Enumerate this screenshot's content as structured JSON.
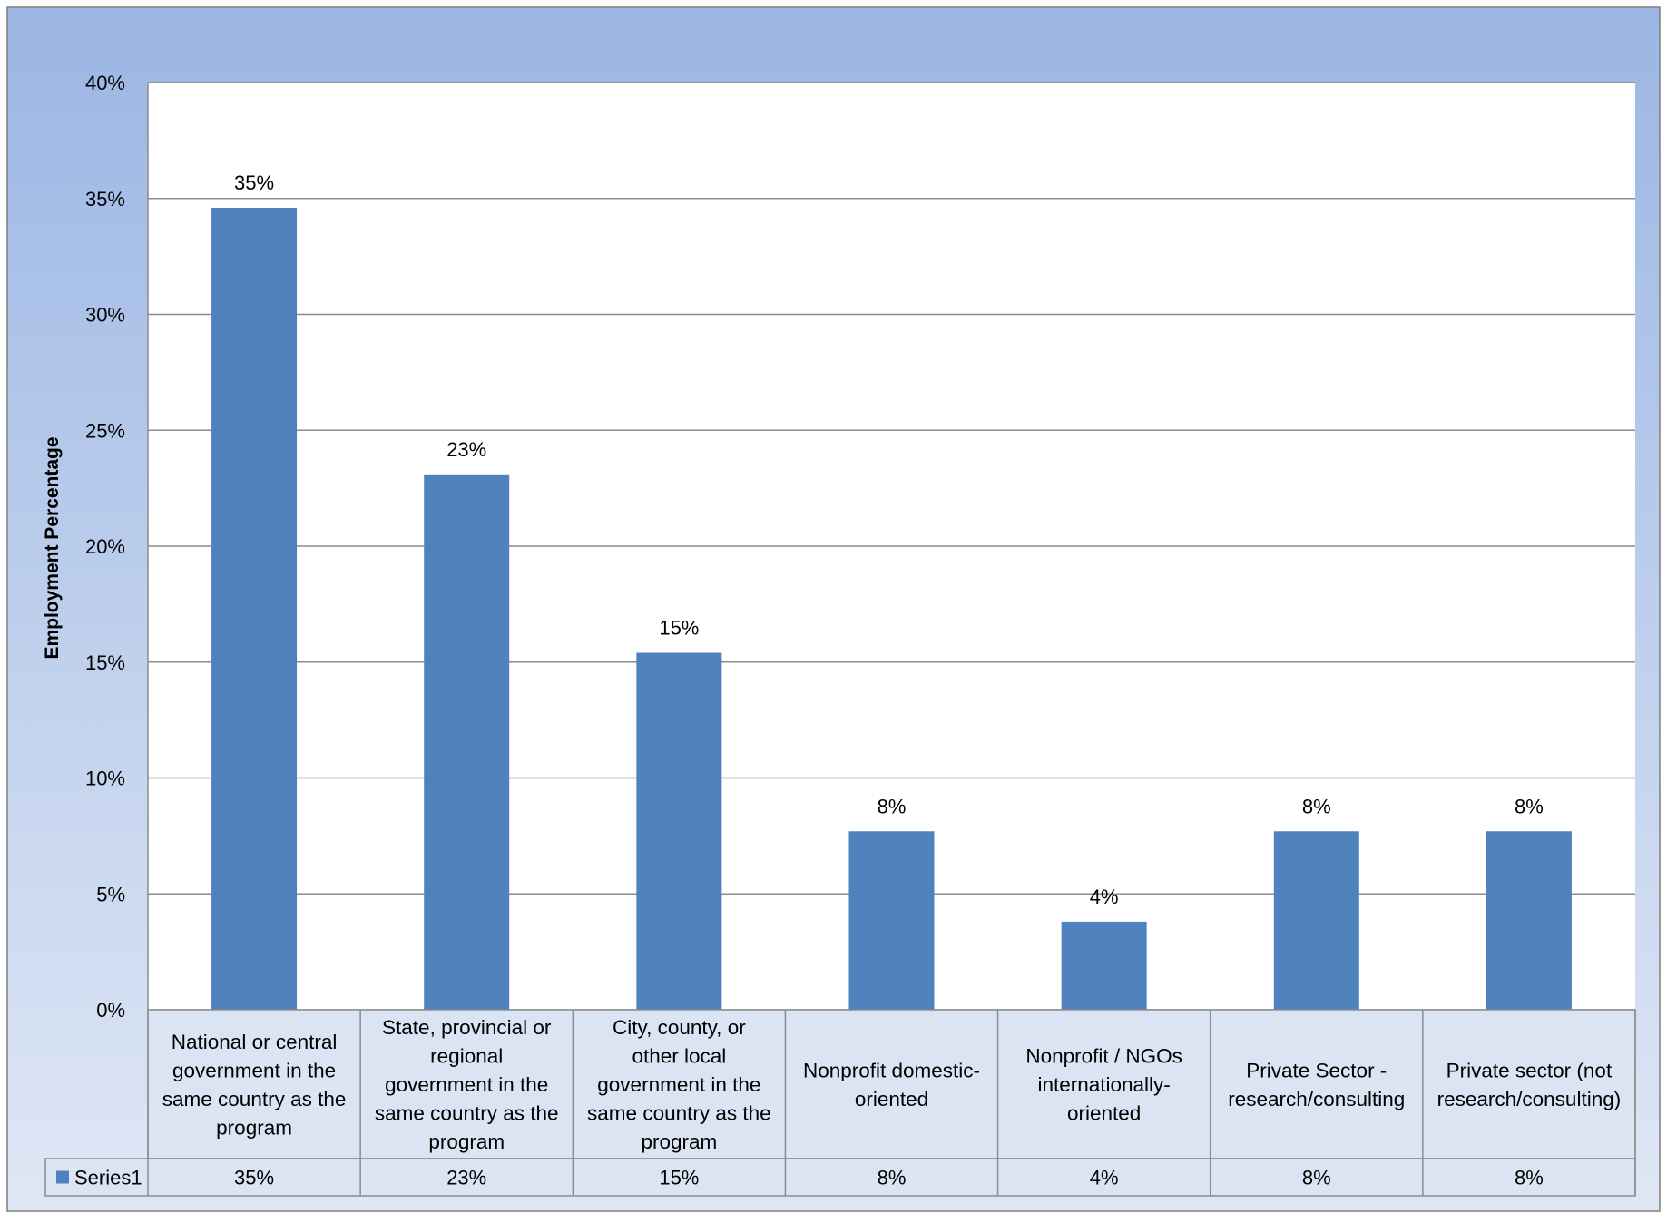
{
  "chart_data": {
    "type": "bar",
    "title": "",
    "xlabel": "",
    "ylabel": "Employment Percentage",
    "ylim": [
      0,
      40
    ],
    "yticks": [
      0,
      5,
      10,
      15,
      20,
      25,
      30,
      35,
      40
    ],
    "tick_suffix": "%",
    "grid": true,
    "categories": [
      [
        "National or central",
        "government in the",
        "same country as the",
        "program"
      ],
      [
        "State, provincial or",
        "regional",
        "government in the",
        "same country as the",
        "program"
      ],
      [
        "City, county, or",
        "other local",
        "government in the",
        "same country as the",
        "program"
      ],
      [
        "Nonprofit domestic-",
        "oriented"
      ],
      [
        "Nonprofit / NGOs",
        "internationally-",
        "oriented"
      ],
      [
        "Private Sector -",
        "research/consulting"
      ],
      [
        "Private sector (not",
        "research/consulting)"
      ]
    ],
    "series": [
      {
        "name": "Series1",
        "color": "#4f81bd",
        "values": [
          34.6,
          23.1,
          15.4,
          7.7,
          3.8,
          7.7,
          7.7
        ],
        "labels": [
          "35%",
          "23%",
          "15%",
          "8%",
          "4%",
          "8%",
          "8%"
        ]
      }
    ],
    "legend": "data-table"
  },
  "colors": {
    "background_top": "#9bb6e4",
    "background_bottom": "#dfe7f5",
    "plot_area": "#ffffff",
    "gridline": "#8c8c8c",
    "table_fill": "#dbe4f3",
    "table_border": "#8c8c8c",
    "text": "#000000"
  }
}
